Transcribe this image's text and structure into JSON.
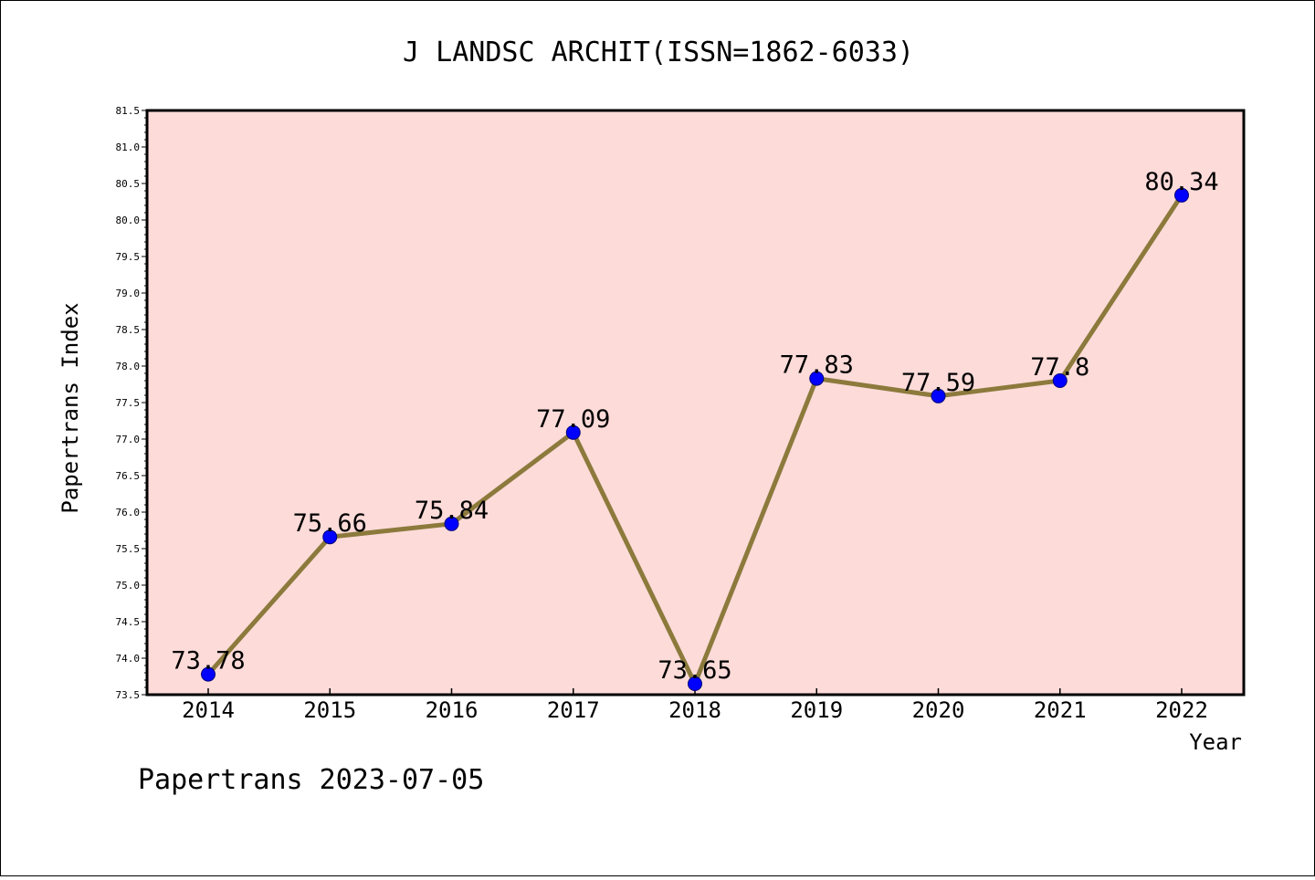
{
  "colors": {
    "background": "#ffffff",
    "plot_background": "#fddbd9",
    "line": "#8c7a3c",
    "marker": "#0000ff",
    "marker_edge": "#00007a",
    "axes": "#000000"
  },
  "footer": "Papertrans 2023-07-05",
  "chart_data": {
    "type": "line",
    "title": "J LANDSC ARCHIT(ISSN=1862-6033)",
    "xlabel": "Year",
    "ylabel": "Papertrans Index",
    "x": [
      "2014",
      "2015",
      "2016",
      "2017",
      "2018",
      "2019",
      "2020",
      "2021",
      "2022"
    ],
    "series": [
      {
        "values": [
          73.78,
          75.66,
          75.84,
          77.09,
          73.65,
          77.83,
          77.59,
          77.8,
          80.34
        ],
        "labels": [
          "73.78",
          "75.66",
          "75.84",
          "77.09",
          "73.65",
          "77.83",
          "77.59",
          "77.8",
          "80.34"
        ]
      }
    ],
    "ylim": [
      73.5,
      81.5
    ],
    "yticks": [
      "73.5",
      "74.0",
      "74.5",
      "75.0",
      "75.5",
      "76.0",
      "76.5",
      "77.0",
      "77.5",
      "78.0",
      "78.5",
      "79.0",
      "79.5",
      "80.0",
      "80.5",
      "81.0",
      "81.5"
    ],
    "grid": false,
    "legend": "none"
  }
}
